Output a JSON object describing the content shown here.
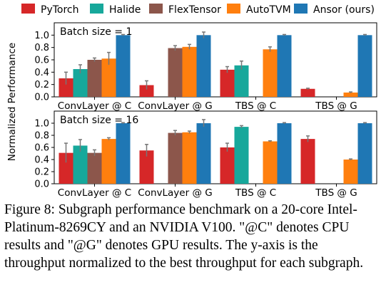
{
  "chart_data": {
    "type": "bar",
    "ylabel": "Normalized Performance",
    "legend": {
      "placement": "top",
      "entries": [
        "PyTorch",
        "Halide",
        "FlexTensor",
        "AutoTVM",
        "Ansor (ours)"
      ]
    },
    "colors": [
      "#d62728",
      "#17a89b",
      "#8c564b",
      "#ff7f0e",
      "#1f77b4"
    ],
    "ylim": [
      0,
      1.2
    ],
    "yticks": [
      "0.0",
      "0.2",
      "0.4",
      "0.6",
      "0.8",
      "1.0"
    ],
    "grid": false,
    "panels": [
      {
        "label": "Batch size = 1",
        "categories": [
          "ConvLayer @ C",
          "ConvLayer @ G",
          "TBS @ C",
          "TBS @ G"
        ],
        "series": [
          {
            "name": "PyTorch",
            "values": [
              0.3,
              0.19,
              0.44,
              0.13
            ],
            "err": [
              0.1,
              0.07,
              0.05,
              0.01
            ]
          },
          {
            "name": "Halide",
            "values": [
              0.45,
              null,
              0.51,
              null
            ],
            "err": [
              0.07,
              null,
              0.07,
              null
            ]
          },
          {
            "name": "FlexTensor",
            "values": [
              0.6,
              0.79,
              null,
              null
            ],
            "err": [
              0.03,
              0.04,
              null,
              null
            ]
          },
          {
            "name": "AutoTVM",
            "values": [
              0.62,
              0.81,
              0.77,
              0.07
            ],
            "err": [
              0.1,
              0.04,
              0.04,
              0.01
            ]
          },
          {
            "name": "Ansor (ours)",
            "values": [
              1.0,
              1.0,
              1.0,
              1.0
            ],
            "err": [
              0.01,
              0.05,
              0.01,
              0.01
            ]
          }
        ]
      },
      {
        "label": "Batch size = 16",
        "categories": [
          "ConvLayer @ C",
          "ConvLayer @ G",
          "TBS @ C",
          "TBS @ G"
        ],
        "series": [
          {
            "name": "PyTorch",
            "values": [
              0.51,
              0.55,
              0.6,
              0.74
            ],
            "err": [
              0.16,
              0.1,
              0.07,
              0.05
            ]
          },
          {
            "name": "Halide",
            "values": [
              0.63,
              null,
              0.94,
              null
            ],
            "err": [
              0.1,
              null,
              0.02,
              null
            ]
          },
          {
            "name": "FlexTensor",
            "values": [
              0.51,
              0.84,
              null,
              null
            ],
            "err": [
              0.05,
              0.04,
              null,
              null
            ]
          },
          {
            "name": "AutoTVM",
            "values": [
              0.74,
              0.85,
              0.7,
              0.4
            ],
            "err": [
              0.02,
              0.02,
              0.01,
              0.01
            ]
          },
          {
            "name": "Ansor (ours)",
            "values": [
              1.0,
              1.0,
              1.0,
              1.0
            ],
            "err": [
              0.01,
              0.06,
              0.01,
              0.01
            ]
          }
        ]
      }
    ]
  },
  "caption": "Figure 8: Subgraph performance benchmark on a 20-core Intel-Platinum-8269CY and an NVIDIA V100. \"@C\" denotes CPU results and \"@G\" denotes GPU results. The y-axis is the throughput normalized to the best throughput for each subgraph."
}
